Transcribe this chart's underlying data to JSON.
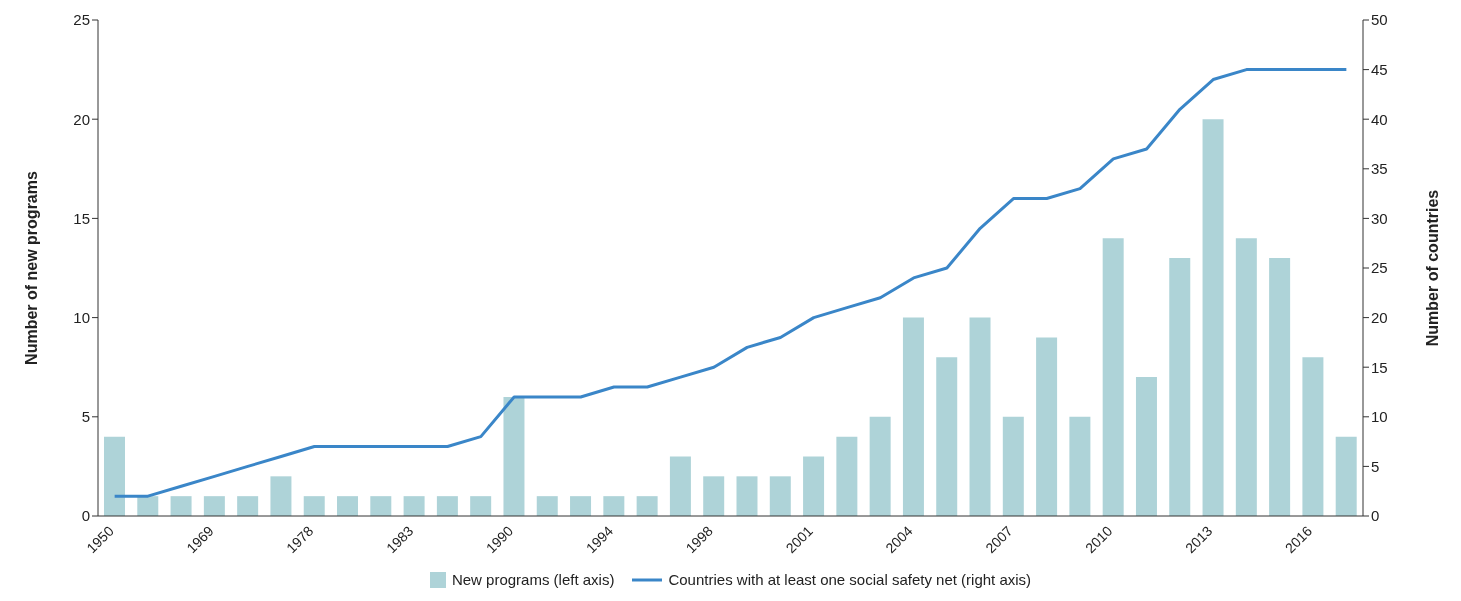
{
  "chart_data": {
    "type": "bar",
    "ylabel": "Number of new programs",
    "y2label": "Number of countries",
    "categories": [
      "1950",
      null,
      null,
      "1969",
      null,
      null,
      "1978",
      null,
      null,
      "1983",
      null,
      null,
      "1990",
      null,
      null,
      "1994",
      null,
      null,
      "1998",
      null,
      null,
      "2001",
      null,
      null,
      "2004",
      null,
      null,
      "2007",
      null,
      null,
      "2010",
      null,
      null,
      "2013",
      null,
      null,
      "2016",
      null
    ],
    "series": [
      {
        "name": "New programs (left axis)",
        "color": "#aed3d8",
        "values": [
          4,
          1,
          1,
          1,
          1,
          2,
          1,
          1,
          1,
          1,
          1,
          1,
          6,
          1,
          1,
          1,
          1,
          3,
          2,
          2,
          2,
          3,
          4,
          5,
          10,
          8,
          10,
          5,
          9,
          5,
          14,
          7,
          13,
          20,
          14,
          13,
          8,
          4
        ]
      },
      {
        "name": "Countries with at least one social safety net (right axis)",
        "type": "line",
        "axis": "y2",
        "color": "#3a86c8",
        "values": [
          2,
          2,
          3,
          4,
          5,
          6,
          7,
          7,
          7,
          7,
          7,
          8,
          12,
          12,
          12,
          13,
          13,
          14,
          15,
          17,
          18,
          20,
          21,
          22,
          24,
          25,
          29,
          32,
          32,
          33,
          36,
          37,
          41,
          44,
          45,
          45,
          45,
          45
        ]
      }
    ],
    "ylim": [
      0,
      25
    ],
    "yticks": [
      0,
      5,
      10,
      15,
      20,
      25
    ],
    "y2lim": [
      0,
      50
    ],
    "y2ticks": [
      0,
      5,
      10,
      15,
      20,
      25,
      30,
      35,
      40,
      45,
      50
    ],
    "grid": false,
    "legend": "bottom",
    "marker": "none",
    "line_style": "solid"
  }
}
